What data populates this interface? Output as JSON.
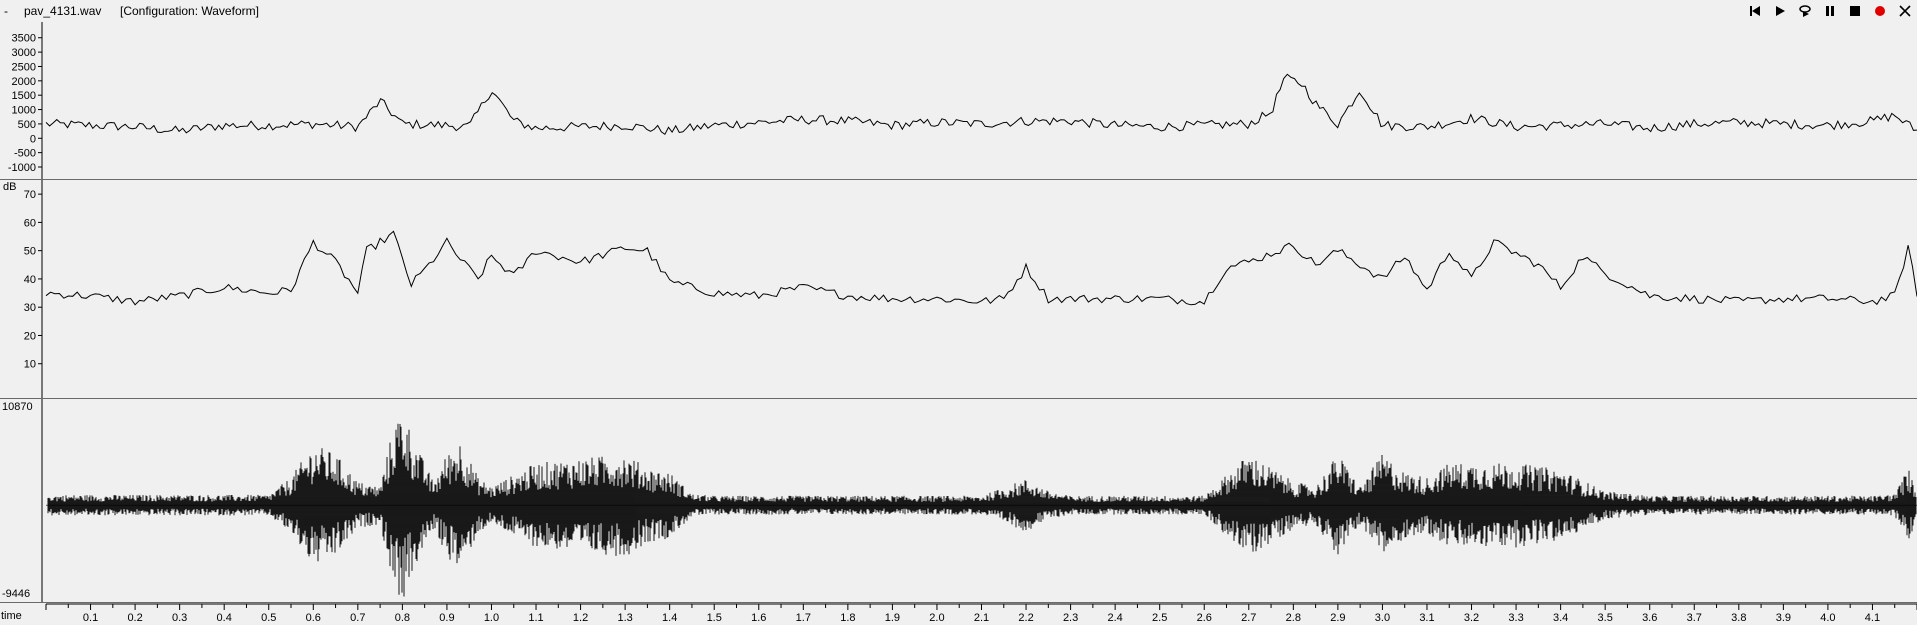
{
  "window": {
    "dash": "-",
    "filename": "pav_4131.wav",
    "configuration": "[Configuration: Waveform]"
  },
  "controls": [
    {
      "name": "skip-to-start-icon"
    },
    {
      "name": "play-icon"
    },
    {
      "name": "loop-play-icon"
    },
    {
      "name": "pause-icon"
    },
    {
      "name": "stop-icon"
    },
    {
      "name": "record-icon",
      "color": "#e00000"
    },
    {
      "name": "close-icon"
    }
  ],
  "chart_data": [
    {
      "type": "line",
      "ylim": [
        -1000,
        3700
      ],
      "yticks": [
        "3500",
        "3000",
        "2500",
        "2000",
        "1500",
        "1000",
        "500",
        "0",
        "-500",
        "-1000"
      ],
      "x": [
        0.0,
        0.1,
        0.2,
        0.3,
        0.4,
        0.5,
        0.6,
        0.7,
        0.75,
        0.8,
        0.9,
        0.95,
        1.0,
        1.05,
        1.1,
        1.2,
        1.3,
        1.4,
        1.5,
        1.6,
        1.7,
        1.8,
        1.9,
        2.0,
        2.1,
        2.2,
        2.3,
        2.4,
        2.5,
        2.6,
        2.7,
        2.75,
        2.78,
        2.82,
        2.85,
        2.9,
        2.95,
        3.0,
        3.1,
        3.2,
        3.3,
        3.4,
        3.5,
        3.6,
        3.7,
        3.8,
        3.9,
        4.0,
        4.1,
        4.15,
        4.2
      ],
      "y": [
        500,
        450,
        400,
        250,
        450,
        450,
        500,
        400,
        1300,
        500,
        450,
        400,
        1700,
        600,
        350,
        400,
        450,
        250,
        450,
        550,
        650,
        600,
        450,
        550,
        500,
        600,
        600,
        450,
        400,
        450,
        500,
        900,
        2100,
        1900,
        1200,
        500,
        1700,
        450,
        400,
        700,
        400,
        450,
        500,
        350,
        500,
        550,
        500,
        450,
        600,
        800,
        250
      ]
    },
    {
      "type": "line",
      "ylabel": "dB",
      "ylim": [
        0,
        75
      ],
      "yticks": [
        "70",
        "60",
        "50",
        "40",
        "30",
        "20",
        "10"
      ],
      "x": [
        0.0,
        0.1,
        0.2,
        0.3,
        0.4,
        0.5,
        0.55,
        0.6,
        0.65,
        0.7,
        0.72,
        0.78,
        0.82,
        0.86,
        0.9,
        0.93,
        0.97,
        1.0,
        1.05,
        1.1,
        1.2,
        1.3,
        1.35,
        1.4,
        1.5,
        1.6,
        1.7,
        1.8,
        1.9,
        2.0,
        2.1,
        2.15,
        2.2,
        2.25,
        2.3,
        2.4,
        2.5,
        2.6,
        2.65,
        2.7,
        2.8,
        2.85,
        2.9,
        3.0,
        3.05,
        3.1,
        3.15,
        3.2,
        3.25,
        3.3,
        3.35,
        3.4,
        3.45,
        3.5,
        3.6,
        3.7,
        3.8,
        3.9,
        4.0,
        4.1,
        4.15,
        4.18,
        4.2
      ],
      "y": [
        35,
        34,
        32,
        34,
        37,
        35,
        36,
        53,
        46,
        35,
        50,
        56,
        38,
        45,
        53,
        47,
        40,
        48,
        41,
        50,
        46,
        51,
        50,
        39,
        35,
        34,
        37,
        34,
        33,
        33,
        32,
        33,
        44,
        33,
        33,
        33,
        33,
        32,
        44,
        46,
        52,
        45,
        50,
        40,
        48,
        36,
        50,
        40,
        53,
        49,
        45,
        37,
        48,
        42,
        34,
        33,
        32,
        33,
        33,
        32,
        34,
        51,
        35
      ]
    },
    {
      "type": "area",
      "ylim": [
        -9446,
        10870
      ],
      "yticks": [
        "10870",
        "-9446"
      ],
      "xlabel": "time",
      "xlim": [
        0,
        4.2
      ],
      "xticks": [
        "0.1",
        "0.2",
        "0.3",
        "0.4",
        "0.5",
        "0.6",
        "0.7",
        "0.8",
        "0.9",
        "1.0",
        "1.1",
        "1.2",
        "1.3",
        "1.4",
        "1.5",
        "1.6",
        "1.7",
        "1.8",
        "1.9",
        "2.0",
        "2.1",
        "2.2",
        "2.3",
        "2.4",
        "2.5",
        "2.6",
        "2.7",
        "2.8",
        "2.9",
        "3.0",
        "3.1",
        "3.2",
        "3.3",
        "3.4",
        "3.5",
        "3.6",
        "3.7",
        "3.8",
        "3.9",
        "4.0",
        "4.1"
      ],
      "x": [
        0.0,
        0.5,
        0.55,
        0.6,
        0.65,
        0.7,
        0.75,
        0.78,
        0.8,
        0.83,
        0.87,
        0.9,
        0.93,
        0.97,
        1.0,
        1.1,
        1.2,
        1.3,
        1.35,
        1.4,
        1.45,
        1.5,
        2.1,
        2.2,
        2.25,
        2.3,
        2.6,
        2.7,
        2.75,
        2.8,
        2.85,
        2.9,
        2.95,
        3.0,
        3.05,
        3.1,
        3.15,
        3.2,
        3.3,
        3.4,
        3.5,
        3.6,
        4.1,
        4.15,
        4.18,
        4.2
      ],
      "amplitude": [
        1100,
        1100,
        3000,
        6500,
        5500,
        2500,
        2000,
        8500,
        10500,
        6500,
        2500,
        5500,
        7000,
        3000,
        2000,
        4500,
        5000,
        5500,
        4000,
        3500,
        1200,
        1000,
        1000,
        2800,
        1500,
        1000,
        1000,
        5500,
        4000,
        2500,
        2000,
        5500,
        2000,
        5500,
        3500,
        3000,
        4500,
        4500,
        4500,
        3800,
        1500,
        1000,
        1000,
        1200,
        4000,
        1500
      ]
    }
  ]
}
